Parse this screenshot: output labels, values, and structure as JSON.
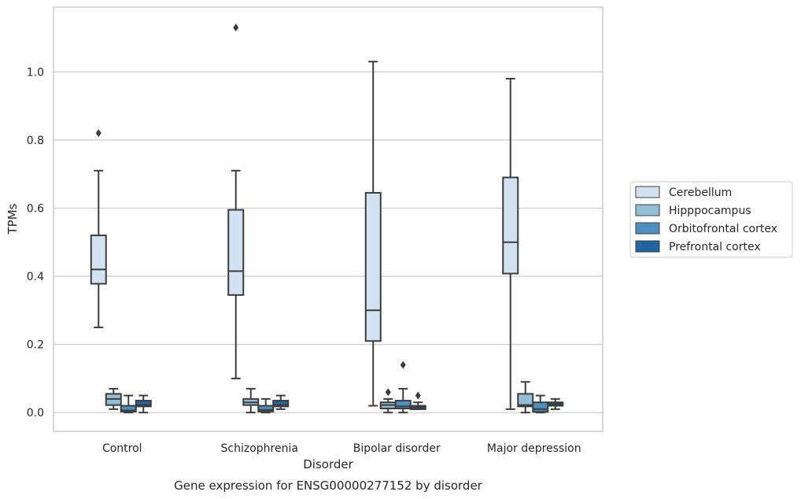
{
  "chart_data": {
    "type": "box",
    "caption": "Gene expression for ENSG00000277152 by disorder",
    "xlabel": "Disorder",
    "ylabel": "TPMs",
    "ylim": [
      -0.055,
      1.19
    ],
    "yticks": [
      "0.0",
      "0.2",
      "0.4",
      "0.6",
      "0.8",
      "1.0"
    ],
    "grid": "horizontal",
    "legend_position": "right",
    "categories": [
      "Control",
      "Schizophrenia",
      "Bipolar disorder",
      "Major depression"
    ],
    "series": [
      {
        "name": "Cerebellum",
        "color": "#d3e2f0",
        "boxes": [
          {
            "whisker_low": 0.25,
            "q1": 0.378,
            "median": 0.42,
            "q3": 0.52,
            "whisker_high": 0.71,
            "outliers": [
              0.82
            ]
          },
          {
            "whisker_low": 0.1,
            "q1": 0.345,
            "median": 0.415,
            "q3": 0.595,
            "whisker_high": 0.71,
            "outliers": [
              1.13
            ]
          },
          {
            "whisker_low": 0.02,
            "q1": 0.21,
            "median": 0.3,
            "q3": 0.645,
            "whisker_high": 1.03,
            "outliers": []
          },
          {
            "whisker_low": 0.01,
            "q1": 0.408,
            "median": 0.5,
            "q3": 0.69,
            "whisker_high": 0.98,
            "outliers": []
          }
        ]
      },
      {
        "name": "Hipppocampus",
        "color": "#94bed6",
        "boxes": [
          {
            "whisker_low": 0.01,
            "q1": 0.022,
            "median": 0.04,
            "q3": 0.055,
            "whisker_high": 0.07,
            "outliers": []
          },
          {
            "whisker_low": 0.0,
            "q1": 0.022,
            "median": 0.03,
            "q3": 0.04,
            "whisker_high": 0.07,
            "outliers": []
          },
          {
            "whisker_low": 0.0,
            "q1": 0.012,
            "median": 0.022,
            "q3": 0.03,
            "whisker_high": 0.04,
            "outliers": [
              0.06
            ]
          },
          {
            "whisker_low": 0.0,
            "q1": 0.018,
            "median": 0.022,
            "q3": 0.055,
            "whisker_high": 0.09,
            "outliers": []
          }
        ]
      },
      {
        "name": "Orbitofrontal cortex",
        "color": "#4e8fc0",
        "boxes": [
          {
            "whisker_low": 0.0,
            "q1": 0.003,
            "median": 0.006,
            "q3": 0.02,
            "whisker_high": 0.05,
            "outliers": []
          },
          {
            "whisker_low": 0.0,
            "q1": 0.003,
            "median": 0.008,
            "q3": 0.02,
            "whisker_high": 0.04,
            "outliers": []
          },
          {
            "whisker_low": 0.0,
            "q1": 0.012,
            "median": 0.018,
            "q3": 0.035,
            "whisker_high": 0.07,
            "outliers": [
              0.14
            ]
          },
          {
            "whisker_low": 0.0,
            "q1": 0.002,
            "median": 0.01,
            "q3": 0.03,
            "whisker_high": 0.05,
            "outliers": []
          }
        ]
      },
      {
        "name": "Prefrontal cortex",
        "color": "#2364a3",
        "boxes": [
          {
            "whisker_low": 0.0,
            "q1": 0.018,
            "median": 0.022,
            "q3": 0.035,
            "whisker_high": 0.05,
            "outliers": []
          },
          {
            "whisker_low": 0.01,
            "q1": 0.018,
            "median": 0.022,
            "q3": 0.035,
            "whisker_high": 0.05,
            "outliers": []
          },
          {
            "whisker_low": 0.01,
            "q1": 0.01,
            "median": 0.015,
            "q3": 0.02,
            "whisker_high": 0.03,
            "outliers": [
              0.05
            ]
          },
          {
            "whisker_low": 0.01,
            "q1": 0.02,
            "median": 0.025,
            "q3": 0.03,
            "whisker_high": 0.04,
            "outliers": []
          }
        ]
      }
    ]
  }
}
